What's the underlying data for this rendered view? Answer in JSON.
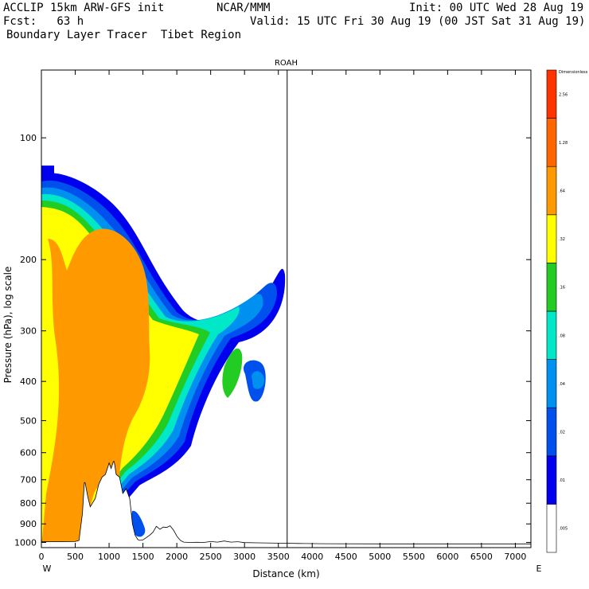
{
  "header": {
    "model_line": "ACCLIP 15km ARW-GFS init",
    "center": "NCAR/MMM",
    "init": "Init: 00 UTC Wed 28 Aug 19",
    "fcst": "Fcst:   63 h",
    "valid": "Valid: 15 UTC Fri 30 Aug 19 (00 JST Sat 31 Aug 19)",
    "field": "Boundary Layer Tracer  Tibet Region"
  },
  "chart_data": {
    "type": "heatmap",
    "title": "ROAH",
    "xlabel": "Distance (km)",
    "ylabel": "Pressure (hPa), log scale",
    "x_end_labels": {
      "left": "W",
      "right": "E"
    },
    "xlim": [
      0,
      7230
    ],
    "ylim": [
      1030,
      68
    ],
    "y_log_scale": true,
    "x_ticks": [
      0,
      500,
      1000,
      1500,
      2000,
      2500,
      3000,
      3500,
      4000,
      4500,
      5000,
      5500,
      6000,
      6500,
      7000
    ],
    "y_ticks": [
      100,
      200,
      300,
      400,
      500,
      600,
      700,
      800,
      900,
      1000
    ],
    "vertical_marker_km": 3630,
    "terrain": {
      "color": "#000000",
      "x": [
        0,
        300,
        500,
        560,
        610,
        640,
        680,
        720,
        800,
        850,
        900,
        950,
        1000,
        1030,
        1070,
        1100,
        1150,
        1200,
        1250,
        1300,
        1340,
        1380,
        1420,
        1450,
        1500,
        1550,
        1600,
        1650,
        1700,
        1750,
        1800,
        1850,
        1900,
        1950,
        2000,
        2050,
        2100,
        2200,
        2300,
        2400,
        2500,
        2600,
        2700,
        2800,
        2900,
        3000,
        3200,
        3500,
        3800,
        4200,
        5000,
        6000,
        7230
      ],
      "p": [
        998,
        998,
        997,
        990,
        850,
        710,
        770,
        820,
        780,
        720,
        690,
        680,
        640,
        660,
        630,
        680,
        690,
        760,
        740,
        780,
        900,
        960,
        985,
        990,
        988,
        975,
        962,
        945,
        915,
        930,
        918,
        920,
        912,
        935,
        968,
        990,
        1000,
        1002,
        1001,
        1002,
        997,
        1000,
        994,
        1000,
        998,
        1003,
        1004,
        1006,
        1008,
        1009,
        1010,
        1010,
        1010
      ]
    },
    "colorbar": {
      "label": "Dimensionless",
      "levels": [
        ".005",
        ".01",
        ".02",
        ".04",
        ".08",
        ".16",
        ".32",
        ".64",
        "1.28",
        "2.56"
      ],
      "colors": [
        "#ffffff",
        "#0000ee",
        "#0050ee",
        "#0090f0",
        "#00e8c8",
        "#22cc22",
        "#ffff00",
        "#ff9900",
        "#ff6600",
        "#ff3300"
      ]
    }
  }
}
